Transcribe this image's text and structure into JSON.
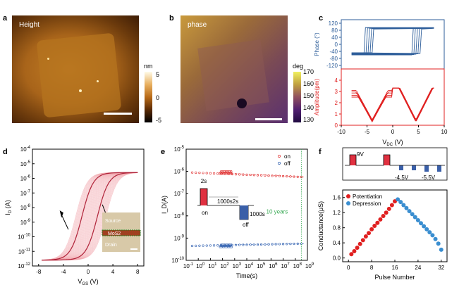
{
  "panels": {
    "a": {
      "label": "a",
      "image_text": "Height",
      "colorbar_unit": "nm",
      "colorbar_ticks": [
        "5",
        "0",
        "-5"
      ]
    },
    "b": {
      "label": "b",
      "image_text": "phase",
      "colorbar_unit": "deg",
      "colorbar_ticks": [
        "170",
        "160",
        "150",
        "140",
        "130"
      ]
    },
    "c": {
      "label": "c"
    },
    "d": {
      "label": "d",
      "inset_labels": [
        "Source",
        "MoS2",
        "Drain"
      ]
    },
    "e": {
      "label": "e",
      "annotations": [
        "2s",
        "1000s",
        "2s",
        "on",
        "off",
        "1000s",
        "10 years"
      ]
    },
    "f": {
      "label": "f",
      "pulse_labels": [
        "9V",
        "-4.5V",
        "-5.5V"
      ]
    }
  },
  "chart_data": [
    {
      "id": "c-top",
      "type": "line",
      "title": "",
      "xlabel": "V_DC (V)",
      "ylabel": "Phase (°)",
      "xlim": [
        -10,
        10
      ],
      "ylim": [
        -140,
        140
      ],
      "xticks": [
        -10,
        -5,
        0,
        5,
        10
      ],
      "yticks": [
        -120,
        -80,
        -40,
        0,
        40,
        80,
        120
      ],
      "series": [
        {
          "color": "#2e5e9a",
          "loop": {
            "low": -60,
            "high": 95,
            "switch_up": 4.5,
            "switch_down": -4.5,
            "xmin": -8,
            "xmax": 8
          }
        }
      ]
    },
    {
      "id": "c-bottom",
      "type": "line",
      "xlabel": "V_DC (V)",
      "ylabel": "Amplitude(pm)",
      "xlim": [
        -10,
        10
      ],
      "ylim": [
        0,
        5
      ],
      "xticks": [
        -10,
        -5,
        0,
        5,
        10
      ],
      "xtick_labels": [
        "-10",
        "-5",
        "0",
        "5",
        "10"
      ],
      "yticks": [
        0,
        1,
        2,
        3,
        4
      ],
      "x_axis_label": "V",
      "x_axis_sub": "DC",
      "x_axis_unit": "(V)",
      "series": [
        {
          "color": "#e02020",
          "butterfly": {
            "min_x": [
              -4,
              4.5
            ],
            "max_amp": 3.3,
            "min_amp": 1.1
          }
        }
      ]
    },
    {
      "id": "d",
      "type": "line",
      "xlabel": "V_GS (V)",
      "ylabel": "I_D (A)",
      "xlim": [
        -9,
        9
      ],
      "ylog": true,
      "ylim_exp": [
        -12,
        -4
      ],
      "xticks": [
        -8,
        -4,
        0,
        4,
        8
      ],
      "xtick_labels": [
        "-8",
        "-4",
        "0",
        "4",
        "8"
      ],
      "yticks_exp": [
        -12,
        -11,
        -10,
        -9,
        -8,
        -7,
        -6,
        -5,
        -4
      ],
      "ylabel_main": "I",
      "ylabel_sub": "D",
      "ylabel_unit": "(A)",
      "xlabel_main": "V",
      "xlabel_sub": "GS",
      "xlabel_unit": "(V)",
      "series": [
        {
          "color": "#f0a0a8",
          "name": ""
        },
        {
          "color": "#b0243a",
          "name": ""
        }
      ]
    },
    {
      "id": "e",
      "type": "scatter",
      "xlabel": "Time(s)",
      "ylabel": "I_D(A)",
      "xlog": true,
      "xlim_exp": [
        -1,
        9
      ],
      "ylog": true,
      "ylim_exp": [
        -10,
        -5
      ],
      "xticks_exp": [
        -1,
        0,
        1,
        2,
        3,
        4,
        5,
        6,
        7,
        8,
        9
      ],
      "yticks_exp": [
        -10,
        -9,
        -8,
        -7,
        -6,
        -5
      ],
      "series": [
        {
          "name": "on",
          "color": "#e03030",
          "level_exp": -6.05,
          "end_exp": -6.25
        },
        {
          "name": "off",
          "color": "#3060b0",
          "level_exp": -9.35,
          "end_exp": -9.25
        }
      ],
      "ten_years_exp": 8.5
    },
    {
      "id": "f",
      "type": "scatter",
      "xlabel": "Pulse Number",
      "ylabel": "Conductance(μS)",
      "xlim": [
        -2,
        34
      ],
      "ylim": [
        -0.1,
        1.8
      ],
      "xticks": [
        0,
        8,
        16,
        24,
        32
      ],
      "yticks": [
        0.0,
        0.4,
        0.8,
        1.2,
        1.6
      ],
      "series": [
        {
          "name": "Potentiation",
          "color": "#e02020",
          "x": [
            1,
            2,
            3,
            4,
            5,
            6,
            7,
            8,
            9,
            10,
            11,
            12,
            13,
            14,
            15,
            16
          ],
          "y": [
            0.1,
            0.18,
            0.27,
            0.37,
            0.47,
            0.57,
            0.66,
            0.76,
            0.85,
            0.93,
            1.02,
            1.11,
            1.2,
            1.3,
            1.4,
            1.5
          ]
        },
        {
          "name": "Depression",
          "color": "#3a8ed0",
          "x": [
            17,
            18,
            19,
            20,
            21,
            22,
            23,
            24,
            25,
            26,
            27,
            28,
            29,
            30,
            31,
            32
          ],
          "y": [
            1.55,
            1.48,
            1.4,
            1.32,
            1.24,
            1.16,
            1.08,
            1.0,
            0.92,
            0.84,
            0.76,
            0.68,
            0.6,
            0.5,
            0.38,
            0.22
          ]
        }
      ]
    }
  ]
}
